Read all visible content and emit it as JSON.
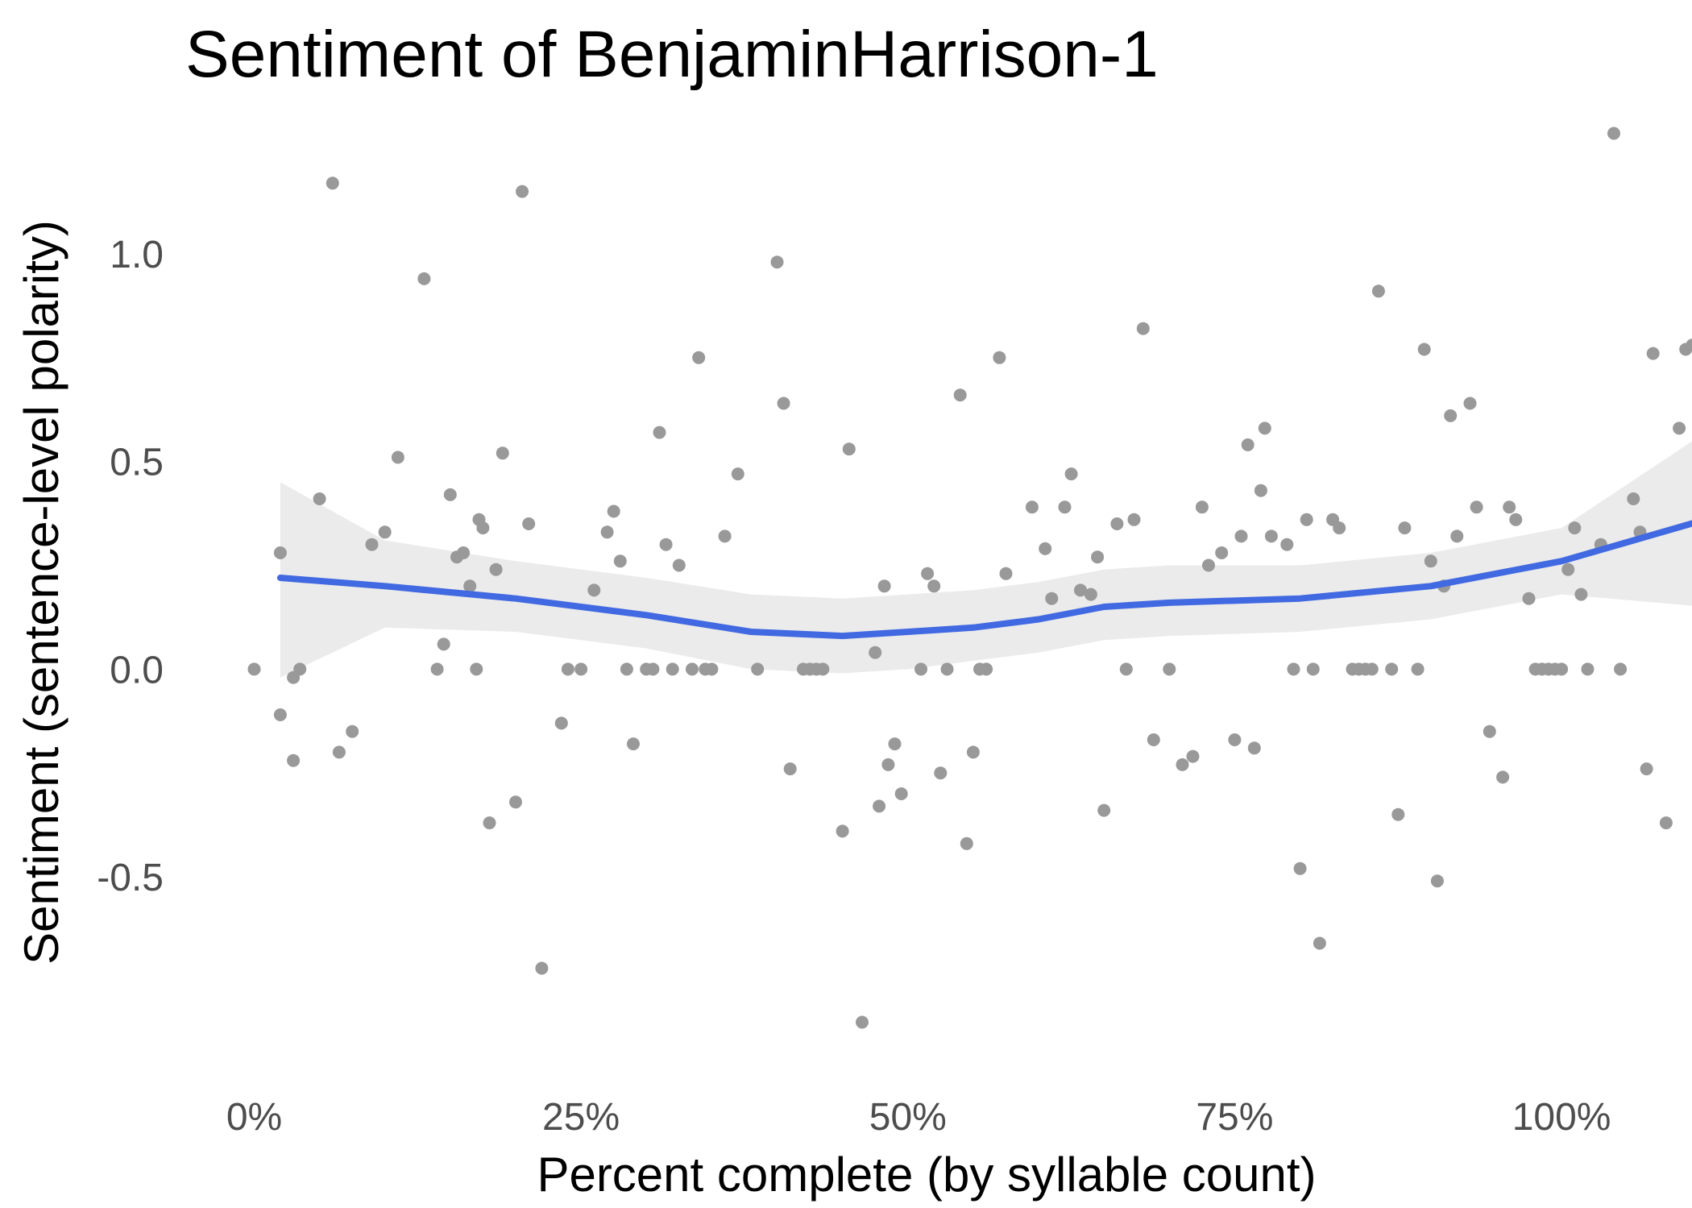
{
  "chart_data": {
    "type": "scatter",
    "title": "Sentiment of BenjaminHarrison-1",
    "xlabel": "Percent complete (by syllable count)",
    "ylabel": "Sentiment (sentence-level polarity)",
    "xlim": [
      -0.02,
      1.04
    ],
    "ylim": [
      -0.95,
      1.32
    ],
    "x_ticks": [
      {
        "value": 0.0,
        "label": "0%"
      },
      {
        "value": 0.25,
        "label": "25%"
      },
      {
        "value": 0.5,
        "label": "50%"
      },
      {
        "value": 0.75,
        "label": "75%"
      },
      {
        "value": 1.0,
        "label": "100%"
      }
    ],
    "y_ticks": [
      {
        "value": 1.0,
        "label": "1.0"
      },
      {
        "value": 0.5,
        "label": "0.5"
      },
      {
        "value": 0.0,
        "label": "0.0"
      },
      {
        "value": -0.5,
        "label": "-0.5"
      }
    ],
    "grid": false,
    "colors": {
      "points": "#999999",
      "smooth_line": "#4169e1",
      "ribbon": "#ebebeb"
    },
    "points": [
      [
        0.0,
        0.0
      ],
      [
        0.02,
        -0.11
      ],
      [
        0.02,
        0.28
      ],
      [
        0.03,
        -0.02
      ],
      [
        0.03,
        -0.22
      ],
      [
        0.035,
        0.0
      ],
      [
        0.05,
        0.41
      ],
      [
        0.06,
        1.17
      ],
      [
        0.065,
        -0.2
      ],
      [
        0.075,
        -0.15
      ],
      [
        0.09,
        0.3
      ],
      [
        0.1,
        0.33
      ],
      [
        0.11,
        0.51
      ],
      [
        0.13,
        0.94
      ],
      [
        0.14,
        0.0
      ],
      [
        0.145,
        0.06
      ],
      [
        0.15,
        0.42
      ],
      [
        0.155,
        0.27
      ],
      [
        0.16,
        0.28
      ],
      [
        0.165,
        0.2
      ],
      [
        0.17,
        0.0
      ],
      [
        0.172,
        0.36
      ],
      [
        0.175,
        0.34
      ],
      [
        0.18,
        -0.37
      ],
      [
        0.185,
        0.24
      ],
      [
        0.19,
        0.52
      ],
      [
        0.2,
        -0.32
      ],
      [
        0.205,
        1.15
      ],
      [
        0.21,
        0.35
      ],
      [
        0.22,
        -0.72
      ],
      [
        0.235,
        -0.13
      ],
      [
        0.24,
        0.0
      ],
      [
        0.25,
        0.0
      ],
      [
        0.26,
        0.19
      ],
      [
        0.27,
        0.33
      ],
      [
        0.275,
        0.38
      ],
      [
        0.28,
        0.26
      ],
      [
        0.285,
        0.0
      ],
      [
        0.29,
        -0.18
      ],
      [
        0.3,
        0.0
      ],
      [
        0.305,
        0.0
      ],
      [
        0.31,
        0.57
      ],
      [
        0.315,
        0.3
      ],
      [
        0.32,
        0.0
      ],
      [
        0.325,
        0.25
      ],
      [
        0.335,
        0.0
      ],
      [
        0.34,
        0.75
      ],
      [
        0.345,
        0.0
      ],
      [
        0.35,
        0.0
      ],
      [
        0.36,
        0.32
      ],
      [
        0.37,
        0.47
      ],
      [
        0.385,
        0.0
      ],
      [
        0.4,
        0.98
      ],
      [
        0.405,
        0.64
      ],
      [
        0.41,
        -0.24
      ],
      [
        0.42,
        0.0
      ],
      [
        0.425,
        0.0
      ],
      [
        0.43,
        0.0
      ],
      [
        0.435,
        0.0
      ],
      [
        0.45,
        -0.39
      ],
      [
        0.455,
        0.53
      ],
      [
        0.465,
        -0.85
      ],
      [
        0.475,
        0.04
      ],
      [
        0.478,
        -0.33
      ],
      [
        0.482,
        0.2
      ],
      [
        0.485,
        -0.23
      ],
      [
        0.49,
        -0.18
      ],
      [
        0.495,
        -0.3
      ],
      [
        0.51,
        0.0
      ],
      [
        0.515,
        0.23
      ],
      [
        0.52,
        0.2
      ],
      [
        0.525,
        -0.25
      ],
      [
        0.53,
        0.0
      ],
      [
        0.54,
        0.66
      ],
      [
        0.545,
        -0.42
      ],
      [
        0.55,
        -0.2
      ],
      [
        0.555,
        0.0
      ],
      [
        0.56,
        0.0
      ],
      [
        0.57,
        0.75
      ],
      [
        0.575,
        0.23
      ],
      [
        0.595,
        0.39
      ],
      [
        0.605,
        0.29
      ],
      [
        0.61,
        0.17
      ],
      [
        0.62,
        0.39
      ],
      [
        0.625,
        0.47
      ],
      [
        0.632,
        0.19
      ],
      [
        0.64,
        0.18
      ],
      [
        0.645,
        0.27
      ],
      [
        0.65,
        -0.34
      ],
      [
        0.66,
        0.35
      ],
      [
        0.667,
        0.0
      ],
      [
        0.673,
        0.36
      ],
      [
        0.68,
        0.82
      ],
      [
        0.688,
        -0.17
      ],
      [
        0.7,
        0.0
      ],
      [
        0.71,
        -0.23
      ],
      [
        0.718,
        -0.21
      ],
      [
        0.725,
        0.39
      ],
      [
        0.73,
        0.25
      ],
      [
        0.74,
        0.28
      ],
      [
        0.75,
        -0.17
      ],
      [
        0.755,
        0.32
      ],
      [
        0.76,
        0.54
      ],
      [
        0.765,
        -0.19
      ],
      [
        0.77,
        0.43
      ],
      [
        0.773,
        0.58
      ],
      [
        0.778,
        0.32
      ],
      [
        0.79,
        0.3
      ],
      [
        0.795,
        0.0
      ],
      [
        0.8,
        -0.48
      ],
      [
        0.805,
        0.36
      ],
      [
        0.81,
        0.0
      ],
      [
        0.815,
        -0.66
      ],
      [
        0.825,
        0.36
      ],
      [
        0.83,
        0.34
      ],
      [
        0.84,
        0.0
      ],
      [
        0.845,
        0.0
      ],
      [
        0.85,
        0.0
      ],
      [
        0.855,
        0.0
      ],
      [
        0.86,
        0.91
      ],
      [
        0.87,
        0.0
      ],
      [
        0.875,
        -0.35
      ],
      [
        0.88,
        0.34
      ],
      [
        0.89,
        0.0
      ],
      [
        0.895,
        0.77
      ],
      [
        0.9,
        0.26
      ],
      [
        0.905,
        -0.51
      ],
      [
        0.91,
        0.2
      ],
      [
        0.915,
        0.61
      ],
      [
        0.92,
        0.32
      ],
      [
        0.93,
        0.64
      ],
      [
        0.935,
        0.39
      ],
      [
        0.945,
        -0.15
      ],
      [
        0.955,
        -0.26
      ],
      [
        0.96,
        0.39
      ],
      [
        0.965,
        0.36
      ],
      [
        0.975,
        0.17
      ],
      [
        0.98,
        0.0
      ],
      [
        0.985,
        0.0
      ],
      [
        0.99,
        0.0
      ],
      [
        0.995,
        0.0
      ],
      [
        1.0,
        0.0
      ],
      [
        1.005,
        0.24
      ],
      [
        1.01,
        0.34
      ],
      [
        1.015,
        0.18
      ],
      [
        1.02,
        0.0
      ],
      [
        1.03,
        0.3
      ],
      [
        1.04,
        1.29
      ],
      [
        1.045,
        0.0
      ],
      [
        1.055,
        0.41
      ],
      [
        1.06,
        0.33
      ],
      [
        1.065,
        -0.24
      ],
      [
        1.07,
        0.76
      ],
      [
        1.08,
        -0.37
      ],
      [
        1.09,
        0.58
      ],
      [
        1.095,
        0.77
      ],
      [
        1.1,
        0.78
      ],
      [
        1.11,
        0.28
      ]
    ],
    "smooth_line": [
      [
        0.02,
        0.22
      ],
      [
        0.1,
        0.2
      ],
      [
        0.2,
        0.17
      ],
      [
        0.3,
        0.13
      ],
      [
        0.38,
        0.09
      ],
      [
        0.45,
        0.08
      ],
      [
        0.5,
        0.09
      ],
      [
        0.55,
        0.1
      ],
      [
        0.6,
        0.12
      ],
      [
        0.65,
        0.15
      ],
      [
        0.7,
        0.16
      ],
      [
        0.8,
        0.17
      ],
      [
        0.9,
        0.2
      ],
      [
        1.0,
        0.26
      ],
      [
        1.11,
        0.36
      ]
    ],
    "ribbon_upper": [
      [
        0.02,
        0.45
      ],
      [
        0.1,
        0.31
      ],
      [
        0.2,
        0.26
      ],
      [
        0.3,
        0.22
      ],
      [
        0.38,
        0.18
      ],
      [
        0.45,
        0.17
      ],
      [
        0.5,
        0.18
      ],
      [
        0.55,
        0.19
      ],
      [
        0.6,
        0.21
      ],
      [
        0.65,
        0.24
      ],
      [
        0.7,
        0.25
      ],
      [
        0.8,
        0.25
      ],
      [
        0.9,
        0.28
      ],
      [
        1.0,
        0.34
      ],
      [
        1.11,
        0.57
      ]
    ],
    "ribbon_lower": [
      [
        0.02,
        -0.02
      ],
      [
        0.1,
        0.1
      ],
      [
        0.2,
        0.09
      ],
      [
        0.3,
        0.05
      ],
      [
        0.38,
        0.0
      ],
      [
        0.45,
        -0.01
      ],
      [
        0.5,
        0.0
      ],
      [
        0.55,
        0.02
      ],
      [
        0.6,
        0.04
      ],
      [
        0.65,
        0.07
      ],
      [
        0.7,
        0.08
      ],
      [
        0.8,
        0.09
      ],
      [
        0.9,
        0.12
      ],
      [
        1.0,
        0.18
      ],
      [
        1.11,
        0.15
      ]
    ]
  }
}
